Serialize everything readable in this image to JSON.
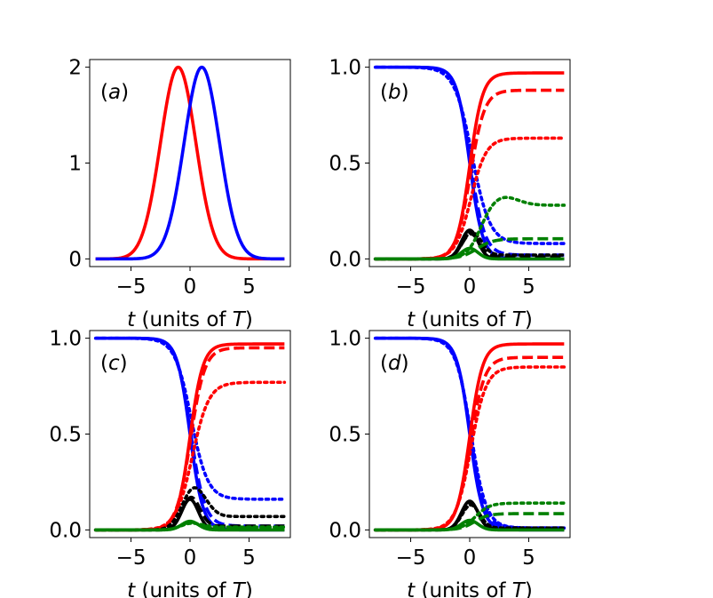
{
  "chart_data": [
    {
      "type": "line",
      "panel": "(a)",
      "panel_letter": "a",
      "xlabel": "t (units of T)",
      "xlim": [
        -8.5,
        8.5
      ],
      "ylim": [
        -0.08,
        2.08
      ],
      "xticks": [
        {
          "v": -5,
          "label": "−5"
        },
        {
          "v": 0,
          "label": "0"
        },
        {
          "v": 5,
          "label": "5"
        }
      ],
      "yticks": [
        {
          "v": 0,
          "label": "0"
        },
        {
          "v": 1,
          "label": "1"
        },
        {
          "v": 2,
          "label": "2"
        }
      ],
      "series": [
        {
          "name": "red pulse",
          "color": "#ff0000",
          "style": "solid",
          "kind": "gauss",
          "params": {
            "amp": 2.0,
            "center": -1.0,
            "width": 1.5
          }
        },
        {
          "name": "blue pulse",
          "color": "#0000ff",
          "style": "solid",
          "kind": "gauss",
          "params": {
            "amp": 2.0,
            "center": 1.0,
            "width": 1.5
          }
        }
      ]
    },
    {
      "type": "line",
      "panel": "(b)",
      "panel_letter": "b",
      "xlabel": "t (units of T)",
      "xlim": [
        -8.5,
        8.5
      ],
      "ylim": [
        -0.04,
        1.04
      ],
      "xticks": [
        {
          "v": -5,
          "label": "−5"
        },
        {
          "v": 0,
          "label": "0"
        },
        {
          "v": 5,
          "label": "5"
        }
      ],
      "yticks": [
        {
          "v": 0,
          "label": "0.0"
        },
        {
          "v": 0.5,
          "label": "0.5"
        },
        {
          "v": 1.0,
          "label": "1.0"
        }
      ],
      "series": [
        {
          "name": "blue solid",
          "color": "#0000ff",
          "style": "solid",
          "kind": "decay",
          "params": {
            "final": 0.0,
            "center": 0.0,
            "width": 0.55
          }
        },
        {
          "name": "blue dashed",
          "color": "#0000ff",
          "style": "dashed",
          "kind": "decay",
          "params": {
            "final": 0.02,
            "center": 0.05,
            "width": 0.6
          }
        },
        {
          "name": "blue dotted",
          "color": "#0000ff",
          "style": "dotted",
          "kind": "decay",
          "params": {
            "final": 0.08,
            "center": 0.2,
            "width": 0.75
          }
        },
        {
          "name": "red solid",
          "color": "#ff0000",
          "style": "solid",
          "kind": "rise",
          "params": {
            "final": 0.97,
            "center": 0.0,
            "width": 0.55
          }
        },
        {
          "name": "red dashed",
          "color": "#ff0000",
          "style": "dashed",
          "kind": "rise",
          "params": {
            "final": 0.88,
            "center": 0.05,
            "width": 0.6
          }
        },
        {
          "name": "red dotted",
          "color": "#ff0000",
          "style": "dotted",
          "kind": "rise",
          "params": {
            "final": 0.63,
            "center": 0.1,
            "width": 0.65
          }
        },
        {
          "name": "black solid",
          "color": "#000000",
          "style": "solid",
          "kind": "bump",
          "params": {
            "peak": 0.15,
            "center": 0.0,
            "width": 0.7,
            "final": 0.0
          }
        },
        {
          "name": "black dashed",
          "color": "#000000",
          "style": "dashed",
          "kind": "bump",
          "params": {
            "peak": 0.13,
            "center": 0.1,
            "width": 0.75,
            "final": 0.01
          }
        },
        {
          "name": "black dotted",
          "color": "#000000",
          "style": "dotted",
          "kind": "bump",
          "params": {
            "peak": 0.14,
            "center": 0.2,
            "width": 0.8,
            "final": 0.02
          }
        },
        {
          "name": "green solid",
          "color": "#008000",
          "style": "solid",
          "kind": "bump",
          "params": {
            "peak": 0.055,
            "center": 0.0,
            "width": 0.7,
            "final": 0.0
          }
        },
        {
          "name": "green dashed",
          "color": "#008000",
          "style": "dashed",
          "kind": "rise",
          "params": {
            "final": 0.105,
            "center": 0.6,
            "width": 0.7
          }
        },
        {
          "name": "green dotted",
          "color": "#008000",
          "style": "dotted",
          "kind": "rise_over",
          "params": {
            "final": 0.28,
            "center": 0.9,
            "width": 0.6,
            "over": 0.05,
            "overCenter": 2.7,
            "overWidth": 1.3
          }
        }
      ]
    },
    {
      "type": "line",
      "panel": "(c)",
      "panel_letter": "c",
      "xlabel": "t (units of T)",
      "xlim": [
        -8.5,
        8.5
      ],
      "ylim": [
        -0.04,
        1.04
      ],
      "xticks": [
        {
          "v": -5,
          "label": "−5"
        },
        {
          "v": 0,
          "label": "0"
        },
        {
          "v": 5,
          "label": "5"
        }
      ],
      "yticks": [
        {
          "v": 0,
          "label": "0.0"
        },
        {
          "v": 0.5,
          "label": "0.5"
        },
        {
          "v": 1.0,
          "label": "1.0"
        }
      ],
      "series": [
        {
          "name": "blue solid",
          "color": "#0000ff",
          "style": "solid",
          "kind": "decay",
          "params": {
            "final": 0.0,
            "center": 0.0,
            "width": 0.55
          }
        },
        {
          "name": "blue dashed",
          "color": "#0000ff",
          "style": "dashed",
          "kind": "decay",
          "params": {
            "final": 0.02,
            "center": 0.05,
            "width": 0.6
          }
        },
        {
          "name": "blue dotted",
          "color": "#0000ff",
          "style": "dotted",
          "kind": "decay",
          "params": {
            "final": 0.16,
            "center": 0.1,
            "width": 0.7
          }
        },
        {
          "name": "red solid",
          "color": "#ff0000",
          "style": "solid",
          "kind": "rise",
          "params": {
            "final": 0.97,
            "center": 0.0,
            "width": 0.55
          }
        },
        {
          "name": "red dashed",
          "color": "#ff0000",
          "style": "dashed",
          "kind": "rise",
          "params": {
            "final": 0.95,
            "center": 0.05,
            "width": 0.6
          }
        },
        {
          "name": "red dotted",
          "color": "#ff0000",
          "style": "dotted",
          "kind": "rise",
          "params": {
            "final": 0.77,
            "center": 0.2,
            "width": 0.7
          }
        },
        {
          "name": "black solid",
          "color": "#000000",
          "style": "solid",
          "kind": "bump",
          "params": {
            "peak": 0.16,
            "center": 0.0,
            "width": 0.7,
            "final": 0.0
          }
        },
        {
          "name": "black dashed",
          "color": "#000000",
          "style": "dashed",
          "kind": "bump",
          "params": {
            "peak": 0.17,
            "center": 0.1,
            "width": 0.75,
            "final": 0.02
          }
        },
        {
          "name": "black dotted",
          "color": "#000000",
          "style": "dotted",
          "kind": "bump",
          "params": {
            "peak": 0.22,
            "center": 0.4,
            "width": 1.0,
            "final": 0.07
          }
        },
        {
          "name": "green solid",
          "color": "#008000",
          "style": "solid",
          "kind": "bump",
          "params": {
            "peak": 0.045,
            "center": 0.0,
            "width": 0.7,
            "final": 0.0
          }
        },
        {
          "name": "green dashed",
          "color": "#008000",
          "style": "dashed",
          "kind": "bump",
          "params": {
            "peak": 0.04,
            "center": 0.1,
            "width": 0.8,
            "final": 0.01
          }
        },
        {
          "name": "green dotted",
          "color": "#008000",
          "style": "dotted",
          "kind": "bump",
          "params": {
            "peak": 0.035,
            "center": 0.2,
            "width": 0.9,
            "final": 0.015
          }
        }
      ]
    },
    {
      "type": "line",
      "panel": "(d)",
      "panel_letter": "d",
      "xlabel": "t (units of T)",
      "xlim": [
        -8.5,
        8.5
      ],
      "ylim": [
        -0.04,
        1.04
      ],
      "xticks": [
        {
          "v": -5,
          "label": "−5"
        },
        {
          "v": 0,
          "label": "0"
        },
        {
          "v": 5,
          "label": "5"
        }
      ],
      "yticks": [
        {
          "v": 0,
          "label": "0.0"
        },
        {
          "v": 0.5,
          "label": "0.5"
        },
        {
          "v": 1.0,
          "label": "1.0"
        }
      ],
      "series": [
        {
          "name": "blue solid",
          "color": "#0000ff",
          "style": "solid",
          "kind": "decay",
          "params": {
            "final": 0.0,
            "center": 0.0,
            "width": 0.55
          }
        },
        {
          "name": "blue dashed",
          "color": "#0000ff",
          "style": "dashed",
          "kind": "decay",
          "params": {
            "final": 0.01,
            "center": 0.05,
            "width": 0.6
          }
        },
        {
          "name": "blue dotted",
          "color": "#0000ff",
          "style": "dotted",
          "kind": "decay",
          "params": {
            "final": 0.01,
            "center": 0.1,
            "width": 0.65
          }
        },
        {
          "name": "red solid",
          "color": "#ff0000",
          "style": "solid",
          "kind": "rise",
          "params": {
            "final": 0.97,
            "center": 0.0,
            "width": 0.55
          }
        },
        {
          "name": "red dashed",
          "color": "#ff0000",
          "style": "dashed",
          "kind": "rise",
          "params": {
            "final": 0.9,
            "center": 0.05,
            "width": 0.6
          }
        },
        {
          "name": "red dotted",
          "color": "#ff0000",
          "style": "dotted",
          "kind": "rise",
          "params": {
            "final": 0.85,
            "center": 0.1,
            "width": 0.65
          }
        },
        {
          "name": "black solid",
          "color": "#000000",
          "style": "solid",
          "kind": "bump",
          "params": {
            "peak": 0.15,
            "center": 0.0,
            "width": 0.7,
            "final": 0.0
          }
        },
        {
          "name": "black dashed",
          "color": "#000000",
          "style": "dashed",
          "kind": "bump",
          "params": {
            "peak": 0.14,
            "center": 0.05,
            "width": 0.72,
            "final": 0.005
          }
        },
        {
          "name": "black dotted",
          "color": "#000000",
          "style": "dotted",
          "kind": "bump",
          "params": {
            "peak": 0.13,
            "center": 0.1,
            "width": 0.75,
            "final": 0.01
          }
        },
        {
          "name": "green solid",
          "color": "#008000",
          "style": "solid",
          "kind": "bump",
          "params": {
            "peak": 0.05,
            "center": 0.0,
            "width": 0.7,
            "final": 0.0
          }
        },
        {
          "name": "green dashed",
          "color": "#008000",
          "style": "dashed",
          "kind": "rise",
          "params": {
            "final": 0.085,
            "center": 0.4,
            "width": 0.6
          }
        },
        {
          "name": "green dotted",
          "color": "#008000",
          "style": "dotted",
          "kind": "rise",
          "params": {
            "final": 0.14,
            "center": 0.5,
            "width": 0.6
          }
        }
      ]
    }
  ]
}
